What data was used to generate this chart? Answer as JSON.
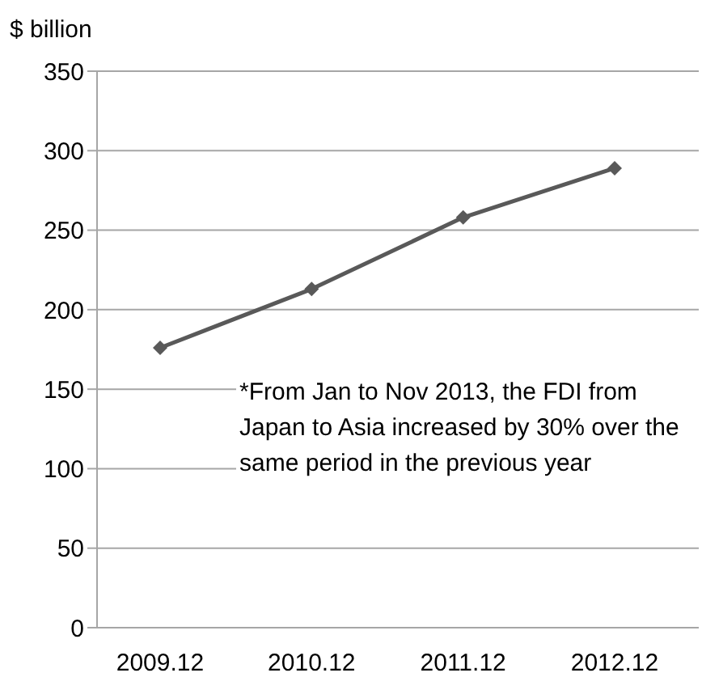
{
  "chart_data": {
    "type": "line",
    "ylabel": "$ billion",
    "categories": [
      "2009.12",
      "2010.12",
      "2011.12",
      "2012.12"
    ],
    "series": [
      {
        "color": "#595959",
        "values": [
          176,
          213,
          258,
          289
        ]
      }
    ],
    "ylim": [
      0,
      350
    ],
    "yticks": [
      0,
      50,
      100,
      150,
      200,
      250,
      300,
      350
    ],
    "grid": "y",
    "marker": "diamond",
    "line_style": "solid",
    "legend": false,
    "annotations": [
      "*From Jan to Nov 2013, the FDI from Japan to Asia increased by 30% over the same period in the previous year"
    ]
  }
}
